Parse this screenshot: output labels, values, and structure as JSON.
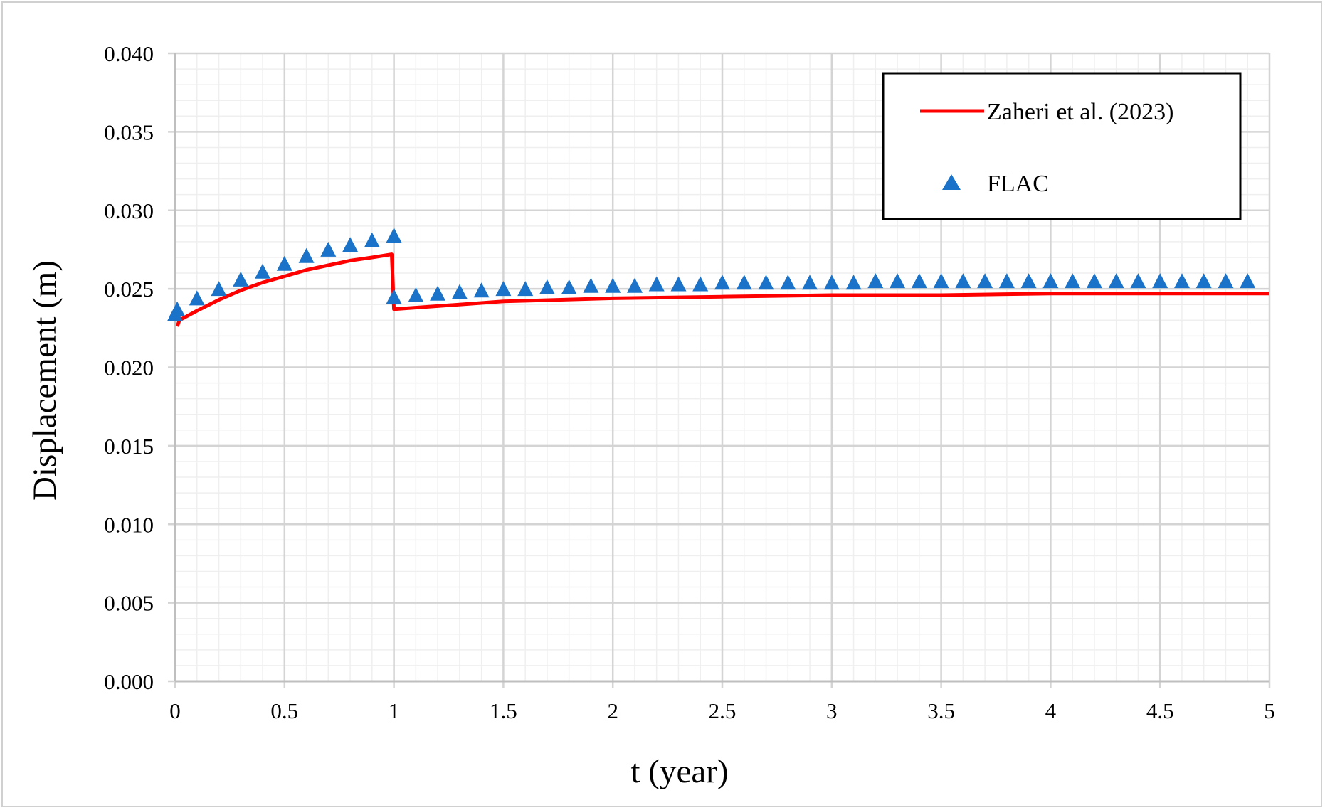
{
  "chart_data": {
    "type": "line",
    "xlabel": "t (year)",
    "ylabel": "Displacement (m)",
    "xlim": [
      0,
      5
    ],
    "ylim": [
      0,
      0.04
    ],
    "x_ticks": [
      "0",
      "0.5",
      "1",
      "1.5",
      "2",
      "2.5",
      "3",
      "3.5",
      "4",
      "4.5",
      "5"
    ],
    "y_ticks": [
      "0.000",
      "0.005",
      "0.010",
      "0.015",
      "0.020",
      "0.025",
      "0.030",
      "0.035",
      "0.040"
    ],
    "grid": true,
    "legend_position": "top-right",
    "series": [
      {
        "name": "Zaheri et al. (2023)",
        "marker": "line",
        "color": "#ff0000",
        "x": [
          0.01,
          0.02,
          0.1,
          0.2,
          0.3,
          0.4,
          0.5,
          0.6,
          0.7,
          0.8,
          0.9,
          0.99,
          1.0,
          1.5,
          2,
          2.5,
          3,
          3.5,
          4,
          4.5,
          5
        ],
        "y": [
          0.0226,
          0.023,
          0.0236,
          0.0243,
          0.0249,
          0.0254,
          0.0258,
          0.0262,
          0.0265,
          0.0268,
          0.027,
          0.0272,
          0.0237,
          0.0242,
          0.0244,
          0.0245,
          0.0246,
          0.0246,
          0.0247,
          0.0247,
          0.0247
        ]
      },
      {
        "name": "FLAC",
        "marker": "triangle",
        "color": "#1a73c8",
        "x": [
          0,
          0.01,
          0.1,
          0.2,
          0.3,
          0.4,
          0.5,
          0.6,
          0.7,
          0.8,
          0.9,
          1.0,
          1.0,
          1.1,
          1.2,
          1.3,
          1.4,
          1.5,
          1.6,
          1.7,
          1.8,
          1.9,
          2.0,
          2.1,
          2.2,
          2.3,
          2.4,
          2.5,
          2.6,
          2.7,
          2.8,
          2.9,
          3.0,
          3.1,
          3.2,
          3.3,
          3.4,
          3.5,
          3.6,
          3.7,
          3.8,
          3.9,
          4.0,
          4.1,
          4.2,
          4.3,
          4.4,
          4.5,
          4.6,
          4.7,
          4.8,
          4.9
        ],
        "y": [
          0.0234,
          0.0237,
          0.0244,
          0.025,
          0.0256,
          0.0261,
          0.0266,
          0.0271,
          0.0275,
          0.0278,
          0.0281,
          0.0284,
          0.0245,
          0.0246,
          0.0247,
          0.0248,
          0.0249,
          0.025,
          0.025,
          0.0251,
          0.0251,
          0.0252,
          0.0252,
          0.0252,
          0.0253,
          0.0253,
          0.0253,
          0.0254,
          0.0254,
          0.0254,
          0.0254,
          0.0254,
          0.0254,
          0.0254,
          0.0255,
          0.0255,
          0.0255,
          0.0255,
          0.0255,
          0.0255,
          0.0255,
          0.0255,
          0.0255,
          0.0255,
          0.0255,
          0.0255,
          0.0255,
          0.0255,
          0.0255,
          0.0255,
          0.0255,
          0.0255
        ]
      }
    ]
  }
}
